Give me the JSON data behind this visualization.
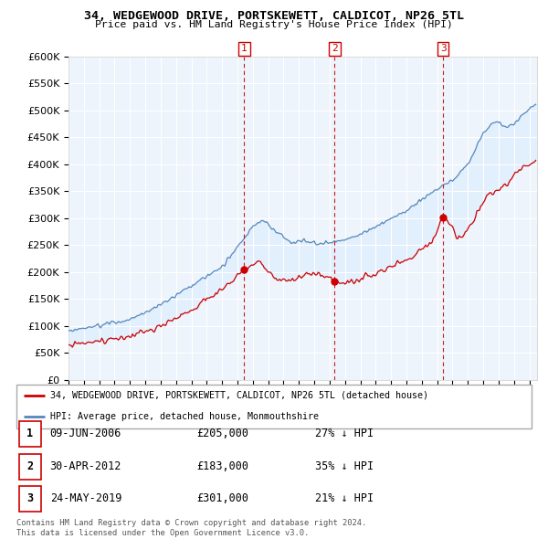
{
  "title": "34, WEDGEWOOD DRIVE, PORTSKEWETT, CALDICOT, NP26 5TL",
  "subtitle": "Price paid vs. HM Land Registry's House Price Index (HPI)",
  "ylim": [
    0,
    600000
  ],
  "yticks": [
    0,
    50000,
    100000,
    150000,
    200000,
    250000,
    300000,
    350000,
    400000,
    450000,
    500000,
    550000,
    600000
  ],
  "xmin": 1995.0,
  "xmax": 2025.5,
  "legend_line1": "34, WEDGEWOOD DRIVE, PORTSKEWETT, CALDICOT, NP26 5TL (detached house)",
  "legend_line2": "HPI: Average price, detached house, Monmouthshire",
  "transactions": [
    {
      "num": 1,
      "date": "09-JUN-2006",
      "price": 205000,
      "pct": "27%",
      "x": 2006.44
    },
    {
      "num": 2,
      "date": "30-APR-2012",
      "price": 183000,
      "pct": "35%",
      "x": 2012.33
    },
    {
      "num": 3,
      "date": "24-MAY-2019",
      "price": 301000,
      "pct": "21%",
      "x": 2019.39
    }
  ],
  "table_rows": [
    {
      "num": "1",
      "date": "09-JUN-2006",
      "price": "£205,000",
      "pct": "27% ↓ HPI"
    },
    {
      "num": "2",
      "date": "30-APR-2012",
      "price": "£183,000",
      "pct": "35% ↓ HPI"
    },
    {
      "num": "3",
      "date": "24-MAY-2019",
      "price": "£301,000",
      "pct": "21% ↓ HPI"
    }
  ],
  "footnote1": "Contains HM Land Registry data © Crown copyright and database right 2024.",
  "footnote2": "This data is licensed under the Open Government Licence v3.0.",
  "red_color": "#cc0000",
  "blue_color": "#5588bb",
  "fill_color": "#ddeeff",
  "background_color": "#ffffff",
  "grid_color": "#cccccc"
}
